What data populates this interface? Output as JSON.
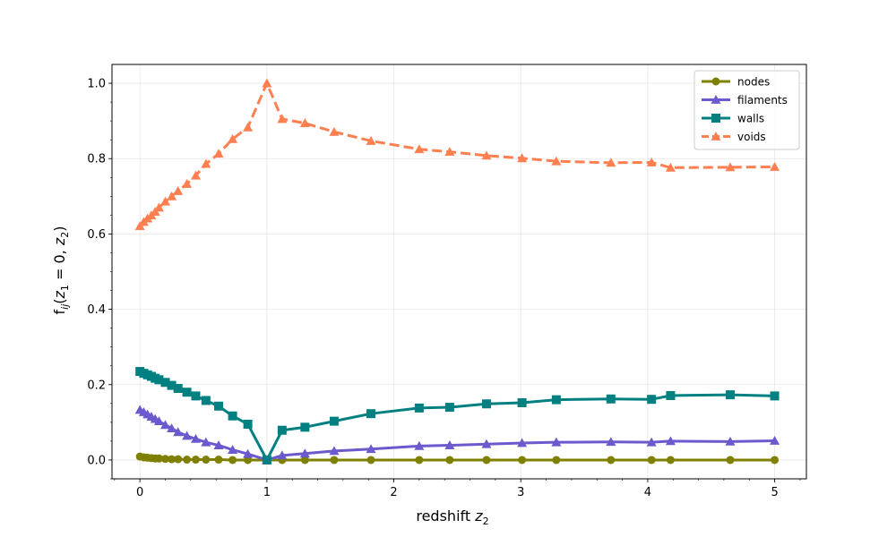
{
  "chart_data": {
    "type": "line",
    "xlabel_text": "redshift ",
    "xlabel_math": "z",
    "xlabel_sub": "2",
    "ylabel_parts": {
      "f": "f",
      "ij": "ij",
      "open": "(",
      "z1": "z",
      "z1_sub": "1",
      "eq": " = 0, ",
      "z2": "z",
      "z2_sub": "2",
      "close": ")"
    },
    "xlim": [
      -0.22,
      5.25
    ],
    "ylim": [
      -0.05,
      1.05
    ],
    "grid": true,
    "legend_position": "top-right",
    "xticks": [
      0,
      1,
      2,
      3,
      4,
      5
    ],
    "xtick_labels": [
      "0",
      "1",
      "2",
      "3",
      "4",
      "5"
    ],
    "yticks": [
      0.0,
      0.2,
      0.4,
      0.6,
      0.8,
      1.0
    ],
    "ytick_labels": [
      "0.0",
      "0.2",
      "0.4",
      "0.6",
      "0.8",
      "1.0"
    ],
    "x": [
      0.0,
      0.03,
      0.06,
      0.09,
      0.12,
      0.15,
      0.2,
      0.25,
      0.3,
      0.37,
      0.44,
      0.52,
      0.62,
      0.73,
      0.85,
      1.0,
      1.12,
      1.3,
      1.53,
      1.82,
      2.2,
      2.44,
      2.73,
      3.01,
      3.28,
      3.71,
      4.03,
      4.18,
      4.65,
      5.0
    ],
    "series": [
      {
        "name": "nodes",
        "color": "#808000",
        "marker": "circle",
        "dash": "solid",
        "values": [
          0.009,
          0.007,
          0.006,
          0.005,
          0.004,
          0.004,
          0.003,
          0.002,
          0.002,
          0.001,
          0.001,
          0.001,
          0.001,
          0.0,
          0.0,
          0.0,
          0.0,
          0.0,
          0.0,
          0.0,
          0.0,
          0.0,
          0.0,
          0.0,
          0.0,
          0.0,
          0.0,
          0.0,
          0.0,
          0.0
        ]
      },
      {
        "name": "filaments",
        "color": "#6a5acd",
        "marker": "triangle",
        "dash": "solid",
        "values": [
          0.133,
          0.127,
          0.121,
          0.115,
          0.109,
          0.103,
          0.093,
          0.084,
          0.074,
          0.064,
          0.056,
          0.047,
          0.039,
          0.027,
          0.016,
          0.0,
          0.012,
          0.017,
          0.024,
          0.029,
          0.037,
          0.039,
          0.042,
          0.045,
          0.047,
          0.048,
          0.047,
          0.05,
          0.049,
          0.051
        ]
      },
      {
        "name": "walls",
        "color": "#008080",
        "marker": "square",
        "dash": "solid",
        "values": [
          0.235,
          0.23,
          0.226,
          0.222,
          0.217,
          0.213,
          0.206,
          0.198,
          0.19,
          0.18,
          0.17,
          0.158,
          0.143,
          0.117,
          0.095,
          0.0,
          0.079,
          0.087,
          0.103,
          0.123,
          0.138,
          0.14,
          0.149,
          0.152,
          0.16,
          0.162,
          0.161,
          0.171,
          0.173,
          0.17
        ]
      },
      {
        "name": "voids",
        "color": "#ff7f50",
        "marker": "triangle",
        "dash": "dashed",
        "values": [
          0.621,
          0.632,
          0.641,
          0.649,
          0.659,
          0.67,
          0.686,
          0.7,
          0.714,
          0.733,
          0.755,
          0.786,
          0.813,
          0.852,
          0.883,
          1.0,
          0.905,
          0.894,
          0.871,
          0.847,
          0.825,
          0.818,
          0.808,
          0.801,
          0.793,
          0.789,
          0.79,
          0.776,
          0.777,
          0.778
        ]
      }
    ]
  }
}
